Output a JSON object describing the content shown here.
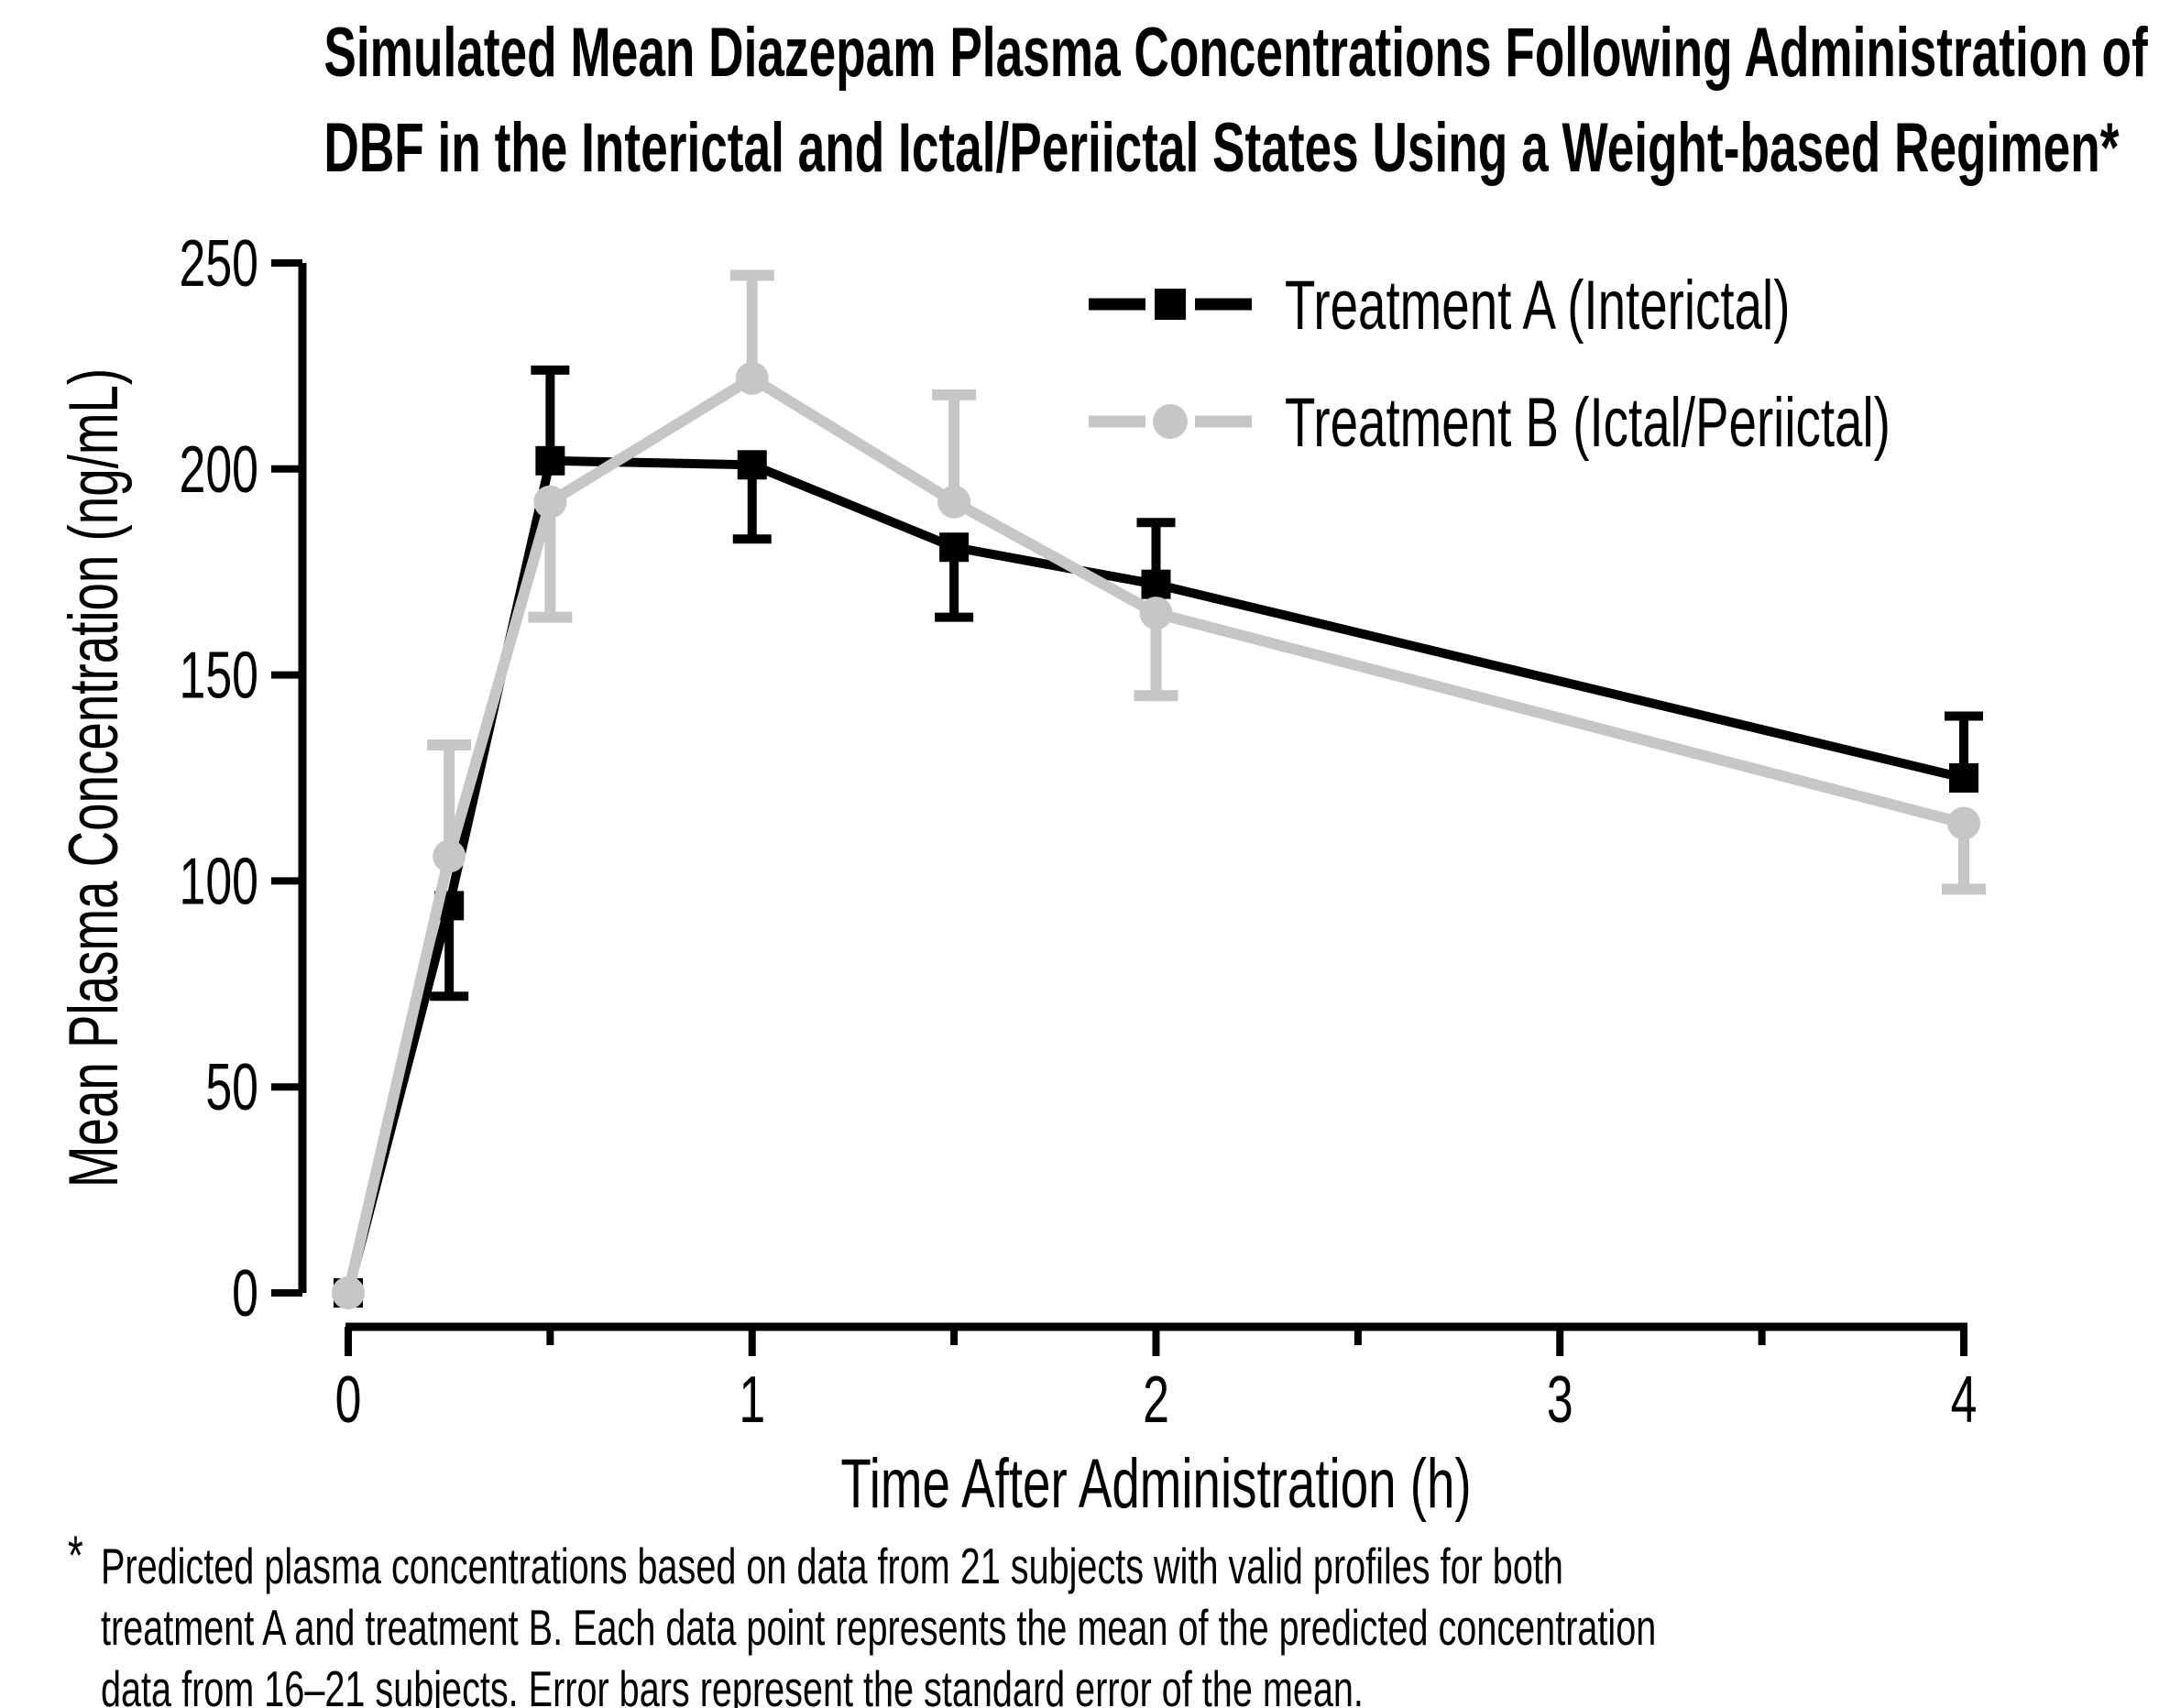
{
  "figure": {
    "title_line1": "Simulated Mean Diazepam Plasma Concentrations Following Administration of",
    "title_line2": "DBF in the Interictal and Ictal/Periictal States Using a Weight-based Regimen*",
    "footnote_marker": "*",
    "footnote_lines": [
      "Predicted plasma concentrations based on data from 21 subjects with valid profiles for both",
      "treatment A and treatment B. Each data point represents the mean of the predicted concentration",
      "data from 16–21 subjects. Error bars represent the standard error of the mean."
    ]
  },
  "chart_data": {
    "type": "line",
    "x": [
      0,
      0.25,
      0.5,
      1,
      1.5,
      2,
      4
    ],
    "series": [
      {
        "name": "Treatment A (Interictal)",
        "color": "#000000",
        "marker": "square",
        "values": [
          0,
          94,
          202,
          201,
          181,
          172,
          125
        ],
        "sem_upper": [
          null,
          null,
          22,
          null,
          null,
          15,
          15
        ],
        "sem_lower": [
          null,
          22,
          null,
          18,
          17,
          null,
          null
        ]
      },
      {
        "name": "Treatment B (Ictal/Periictal)",
        "color": "#c6c6c6",
        "marker": "circle",
        "values": [
          0,
          106,
          192,
          222,
          192,
          165,
          114
        ],
        "sem_upper": [
          null,
          27,
          null,
          25,
          26,
          null,
          null
        ],
        "sem_lower": [
          null,
          null,
          28,
          null,
          null,
          20,
          16
        ]
      }
    ],
    "xlabel": "Time After Administration (h)",
    "ylabel": "Mean Plasma Concentration (ng/mL)",
    "xlim": [
      0,
      4
    ],
    "ylim": [
      0,
      250
    ],
    "x_major_ticks": [
      0,
      1,
      2,
      3,
      4
    ],
    "x_minor_ticks": [
      0.5,
      1.5,
      2.5,
      3.5
    ],
    "y_ticks": [
      0,
      50,
      100,
      150,
      200,
      250
    ],
    "legend_position": "top-right",
    "grid": false,
    "error_bars": "standard error of the mean"
  }
}
